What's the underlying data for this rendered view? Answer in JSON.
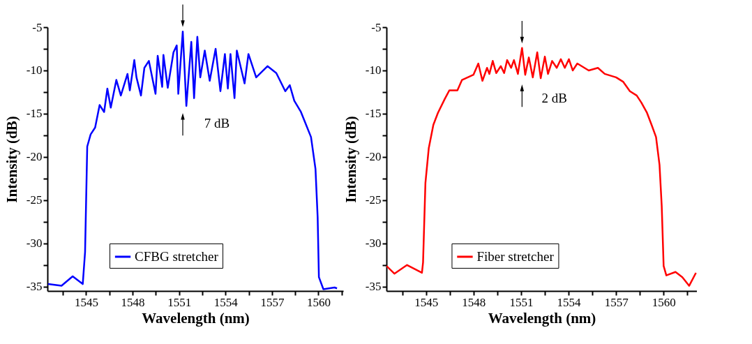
{
  "chart_data": [
    {
      "type": "line",
      "xlabel": "Wavelength (nm)",
      "ylabel": "Intensity (dB)",
      "legend": "bottom",
      "line_style": "solid",
      "xlim": [
        1542.5,
        1561.6
      ],
      "ylim": [
        -35.5,
        -5
      ],
      "xticks": [
        {
          "value": 1543.5,
          "label": null
        },
        1545,
        {
          "value": 1546.5,
          "label": null
        },
        1548,
        {
          "value": 1549.5,
          "label": null
        },
        1551,
        {
          "value": 1552.5,
          "label": null
        },
        1554,
        {
          "value": 1555.5,
          "label": null
        },
        1557,
        {
          "value": 1558.5,
          "label": null
        },
        1560,
        {
          "value": 1561.5,
          "label": null
        }
      ],
      "yticks": [
        -35,
        {
          "value": -32.5,
          "label": null
        },
        -30,
        {
          "value": -27.5,
          "label": null
        },
        -25,
        {
          "value": -22.5,
          "label": null
        },
        -20,
        {
          "value": -17.5,
          "label": null
        },
        -15,
        {
          "value": -12.5,
          "label": null
        },
        -10,
        {
          "value": -7.5,
          "label": null
        },
        -5
      ],
      "annotations": [
        "7 dB"
      ],
      "x": [
        1542.54,
        1543.41,
        1544.13,
        1544.78,
        1544.93,
        1545.07,
        1545.29,
        1545.58,
        1545.87,
        1546.16,
        1546.37,
        1546.59,
        1546.95,
        1547.24,
        1547.67,
        1547.82,
        1548.11,
        1548.25,
        1548.54,
        1548.76,
        1549.05,
        1549.48,
        1549.62,
        1549.91,
        1549.99,
        1550.27,
        1550.64,
        1550.85,
        1550.95,
        1551.24,
        1551.47,
        1551.79,
        1551.97,
        1552.18,
        1552.37,
        1552.66,
        1552.98,
        1553.36,
        1553.67,
        1553.96,
        1554.15,
        1554.32,
        1554.58,
        1554.73,
        1555.23,
        1555.48,
        1555.98,
        1556.71,
        1557.28,
        1557.86,
        1558.15,
        1558.44,
        1558.87,
        1559.16,
        1559.52,
        1559.81,
        1559.95,
        1560.03,
        1560.32,
        1561.04,
        1561.2
      ],
      "series": [
        {
          "name": "CFBG stretcher",
          "color": "#0000ff",
          "values": [
            -34.7,
            -34.9,
            -33.8,
            -34.7,
            -31.0,
            -18.8,
            -17.4,
            -16.6,
            -14.0,
            -14.8,
            -12.1,
            -14.3,
            -11.1,
            -12.9,
            -10.4,
            -12.3,
            -8.8,
            -10.8,
            -12.9,
            -9.7,
            -8.9,
            -12.7,
            -8.3,
            -11.9,
            -8.2,
            -12.0,
            -7.9,
            -7.1,
            -12.7,
            -5.5,
            -14.1,
            -6.7,
            -13.2,
            -6.1,
            -10.8,
            -7.7,
            -11.2,
            -7.5,
            -12.4,
            -8.1,
            -12.1,
            -8.1,
            -13.2,
            -7.7,
            -11.5,
            -8.1,
            -10.8,
            -9.5,
            -10.3,
            -12.4,
            -11.7,
            -13.5,
            -14.8,
            -16.1,
            -17.7,
            -21.4,
            -27.0,
            -33.9,
            -35.3,
            -35.1,
            -35.2
          ]
        }
      ]
    },
    {
      "type": "line",
      "xlabel": "Wavelength (nm)",
      "ylabel": "Intensity (dB)",
      "legend": "bottom",
      "line_style": "solid",
      "xlim": [
        1542.5,
        1562.1
      ],
      "ylim": [
        -35.5,
        -5
      ],
      "xticks": [
        {
          "value": 1543.5,
          "label": null
        },
        1545,
        {
          "value": 1546.5,
          "label": null
        },
        1548,
        {
          "value": 1549.5,
          "label": null
        },
        1551,
        {
          "value": 1552.5,
          "label": null
        },
        1554,
        {
          "value": 1555.5,
          "label": null
        },
        1557,
        {
          "value": 1558.5,
          "label": null
        },
        1560,
        {
          "value": 1561.5,
          "label": null
        }
      ],
      "yticks": [
        -35,
        {
          "value": -32.5,
          "label": null
        },
        -30,
        {
          "value": -27.5,
          "label": null
        },
        -25,
        {
          "value": -22.5,
          "label": null
        },
        -20,
        {
          "value": -17.5,
          "label": null
        },
        -15,
        {
          "value": -12.5,
          "label": null
        },
        -10,
        {
          "value": -7.5,
          "label": null
        },
        -5
      ],
      "annotations": [
        "2 dB"
      ],
      "x": [
        1542.5,
        1543.0,
        1543.8,
        1544.74,
        1544.81,
        1544.96,
        1545.17,
        1545.46,
        1545.75,
        1546.18,
        1546.47,
        1546.98,
        1547.27,
        1547.99,
        1548.3,
        1548.56,
        1548.85,
        1549.0,
        1549.21,
        1549.43,
        1549.72,
        1549.93,
        1550.12,
        1550.37,
        1550.55,
        1550.8,
        1551.06,
        1551.26,
        1551.49,
        1551.74,
        1552.02,
        1552.24,
        1552.5,
        1552.7,
        1552.96,
        1553.25,
        1553.51,
        1553.76,
        1554.02,
        1554.26,
        1554.55,
        1555.27,
        1555.85,
        1556.28,
        1557.0,
        1557.44,
        1557.87,
        1558.3,
        1558.59,
        1558.95,
        1559.24,
        1559.52,
        1559.74,
        1559.88,
        1560.0,
        1560.17,
        1560.75,
        1561.18,
        1561.61,
        1562.04
      ],
      "series": [
        {
          "name": "Fiber stretcher",
          "color": "#ff0000",
          "values": [
            -32.6,
            -33.5,
            -32.5,
            -33.4,
            -32.2,
            -23.0,
            -19.0,
            -16.3,
            -14.9,
            -13.3,
            -12.3,
            -12.3,
            -11.1,
            -10.5,
            -9.2,
            -11.2,
            -9.7,
            -10.4,
            -8.9,
            -10.3,
            -9.5,
            -10.3,
            -8.8,
            -9.7,
            -8.8,
            -10.4,
            -7.4,
            -10.5,
            -8.5,
            -10.8,
            -7.9,
            -10.9,
            -8.4,
            -10.4,
            -8.9,
            -9.7,
            -8.7,
            -9.7,
            -8.7,
            -10.0,
            -9.2,
            -10.0,
            -9.7,
            -10.4,
            -10.8,
            -11.3,
            -12.4,
            -12.9,
            -13.7,
            -14.9,
            -16.3,
            -17.7,
            -20.9,
            -25.7,
            -32.6,
            -33.7,
            -33.3,
            -33.9,
            -34.9,
            -33.4
          ]
        }
      ]
    }
  ]
}
